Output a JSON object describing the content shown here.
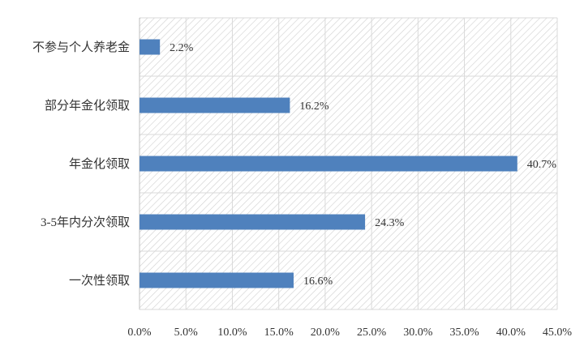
{
  "chart_data": {
    "type": "bar",
    "orientation": "horizontal",
    "categories": [
      "不参与个人养老金",
      "部分年金化领取",
      "年金化领取",
      "3-5年内分次领取",
      "一次性领取"
    ],
    "values": [
      2.2,
      16.2,
      40.7,
      24.3,
      16.6
    ],
    "value_labels": [
      "2.2%",
      "16.2%",
      "40.7%",
      "24.3%",
      "16.6%"
    ],
    "xlim": [
      0,
      45
    ],
    "x_ticks": [
      0,
      5,
      10,
      15,
      20,
      25,
      30,
      35,
      40,
      45
    ],
    "x_tick_labels": [
      "0.0%",
      "5.0%",
      "10.0%",
      "15.0%",
      "20.0%",
      "25.0%",
      "30.0%",
      "35.0%",
      "40.0%",
      "45.0%"
    ],
    "bar_color": "#4f81bd",
    "background": "diagonal-hatch",
    "grid": true,
    "legend": "none",
    "title": "",
    "xlabel": "",
    "ylabel": ""
  }
}
